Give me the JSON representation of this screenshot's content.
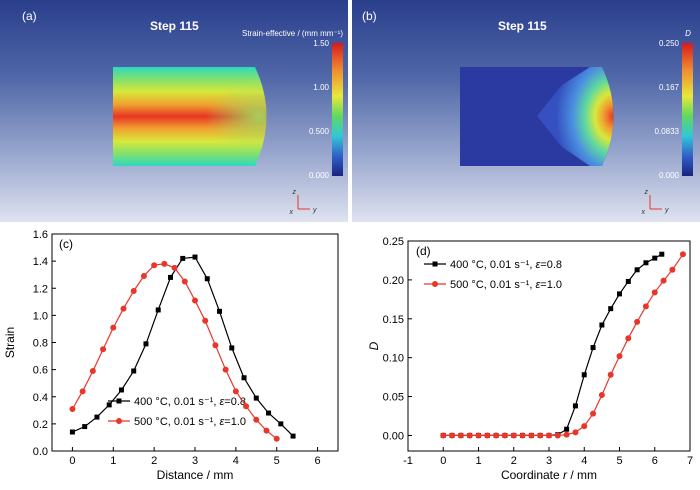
{
  "sim_panels": [
    {
      "panel_label": "(a)",
      "step": "Step 115",
      "colorbar_title": "Strain-effective / (mm mm⁻¹)",
      "colorbar_ticks": [
        "1.50",
        "1.00",
        "0.500",
        "0.000"
      ],
      "axis_z": "z",
      "axis_x": "x",
      "axis_y": "y"
    },
    {
      "panel_label": "(b)",
      "step": "Step 115",
      "colorbar_title": "D",
      "colorbar_ticks": [
        "0.250",
        "0.167",
        "0.0833",
        "0.000"
      ],
      "axis_z": "z",
      "axis_x": "x",
      "axis_y": "y"
    }
  ],
  "colors": {
    "series1": "#000000",
    "series2": "#e8362a"
  },
  "chart_data": [
    {
      "type": "line",
      "panel_label": "(c)",
      "xlabel": "Distance / mm",
      "ylabel": "Strain",
      "xlim": [
        -0.5,
        6.5
      ],
      "ylim": [
        0,
        1.6
      ],
      "xticks": [
        0,
        1,
        2,
        3,
        4,
        5,
        6
      ],
      "yticks": [
        0.0,
        0.2,
        0.4,
        0.6,
        0.8,
        1.0,
        1.2,
        1.4,
        1.6
      ],
      "xtick_labels": [
        "0",
        "1",
        "2",
        "3",
        "4",
        "5",
        "6"
      ],
      "ytick_labels": [
        "0.0",
        "0.2",
        "0.4",
        "0.6",
        "0.8",
        "1.0",
        "1.2",
        "1.4",
        "1.6"
      ],
      "grid": false,
      "legend_position": "bottom-right",
      "series": [
        {
          "name": "400 °C, 0.01 s⁻¹, ε=0.8",
          "marker": "square",
          "color": "#000000",
          "x": [
            0,
            0.3,
            0.6,
            0.9,
            1.2,
            1.5,
            1.8,
            2.1,
            2.4,
            2.7,
            3.0,
            3.3,
            3.6,
            3.9,
            4.2,
            4.5,
            4.8,
            5.1,
            5.4
          ],
          "y": [
            0.14,
            0.18,
            0.25,
            0.34,
            0.45,
            0.59,
            0.79,
            1.04,
            1.28,
            1.42,
            1.43,
            1.27,
            1.03,
            0.76,
            0.54,
            0.39,
            0.28,
            0.2,
            0.11
          ]
        },
        {
          "name": "500 °C, 0.01 s⁻¹, ε=1.0",
          "marker": "circle",
          "color": "#e8362a",
          "x": [
            0,
            0.25,
            0.5,
            0.75,
            1.0,
            1.25,
            1.5,
            1.75,
            2.0,
            2.25,
            2.5,
            2.75,
            3.0,
            3.25,
            3.5,
            3.75,
            4.0,
            4.25,
            4.5,
            4.75,
            5.0
          ],
          "y": [
            0.31,
            0.44,
            0.59,
            0.75,
            0.91,
            1.05,
            1.18,
            1.29,
            1.37,
            1.38,
            1.35,
            1.25,
            1.11,
            0.96,
            0.78,
            0.6,
            0.44,
            0.33,
            0.23,
            0.15,
            0.09
          ]
        }
      ]
    },
    {
      "type": "line",
      "panel_label": "(d)",
      "xlabel": "Coordinate r / mm",
      "ylabel": "D",
      "xlim": [
        -1,
        7
      ],
      "ylim": [
        -0.02,
        0.25
      ],
      "xticks": [
        -1,
        0,
        1,
        2,
        3,
        4,
        5,
        6,
        7
      ],
      "yticks": [
        0.0,
        0.05,
        0.1,
        0.15,
        0.2,
        0.25
      ],
      "xtick_labels": [
        "-1",
        "0",
        "1",
        "2",
        "3",
        "4",
        "5",
        "6",
        "7"
      ],
      "ytick_labels": [
        "0.00",
        "0.05",
        "0.10",
        "0.15",
        "0.20",
        "0.25"
      ],
      "grid": false,
      "legend_position": "top-left",
      "series": [
        {
          "name": "400 °C, 0.01 s⁻¹, ε=0.8",
          "marker": "square",
          "color": "#000000",
          "x": [
            0,
            0.25,
            0.5,
            0.75,
            1.0,
            1.25,
            1.5,
            1.75,
            2.0,
            2.25,
            2.5,
            2.75,
            3.0,
            3.25,
            3.5,
            3.75,
            4.0,
            4.25,
            4.5,
            4.75,
            5.0,
            5.25,
            5.5,
            5.75,
            6.0,
            6.2
          ],
          "y": [
            0,
            0,
            0,
            0,
            0,
            0,
            0,
            0,
            0,
            0,
            0,
            0,
            0,
            0.001,
            0.008,
            0.038,
            0.078,
            0.113,
            0.142,
            0.163,
            0.182,
            0.198,
            0.213,
            0.222,
            0.228,
            0.233
          ]
        },
        {
          "name": "500 °C, 0.01 s⁻¹, ε=1.0",
          "marker": "circle",
          "color": "#e8362a",
          "x": [
            0,
            0.25,
            0.5,
            0.75,
            1.0,
            1.25,
            1.5,
            1.75,
            2.0,
            2.25,
            2.5,
            2.75,
            3.0,
            3.25,
            3.5,
            3.75,
            4.0,
            4.25,
            4.5,
            4.75,
            5.0,
            5.25,
            5.5,
            5.75,
            6.0,
            6.25,
            6.5,
            6.8
          ],
          "y": [
            0,
            0,
            0,
            0,
            0,
            0,
            0,
            0,
            0,
            0,
            0,
            0,
            0,
            0,
            0.001,
            0.004,
            0.012,
            0.028,
            0.052,
            0.078,
            0.102,
            0.125,
            0.146,
            0.166,
            0.184,
            0.199,
            0.213,
            0.233
          ]
        }
      ]
    }
  ]
}
